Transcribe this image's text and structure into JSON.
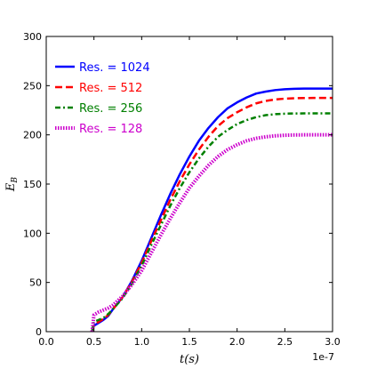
{
  "chart_data": {
    "type": "line",
    "title": "",
    "xlabel": "t(s)",
    "ylabel": "E_B",
    "x_offset_text": "1e-7",
    "xlim": [
      0,
      3.0
    ],
    "ylim": [
      0,
      300
    ],
    "x_ticks": [
      "0.0",
      "0.5",
      "1.0",
      "1.5",
      "2.0",
      "2.5",
      "3.0"
    ],
    "y_ticks": [
      "0",
      "50",
      "100",
      "150",
      "200",
      "250",
      "300"
    ],
    "grid": false,
    "legend_position": "top-left",
    "series": [
      {
        "name": "Res. = 1024",
        "color": "#0000ff",
        "style": "solid",
        "points": [
          [
            0.48,
            0
          ],
          [
            0.5,
            6
          ],
          [
            0.55,
            9
          ],
          [
            0.6,
            12
          ],
          [
            0.65,
            16
          ],
          [
            0.7,
            23
          ],
          [
            0.8,
            35
          ],
          [
            0.9,
            52
          ],
          [
            1.0,
            72
          ],
          [
            1.1,
            95
          ],
          [
            1.2,
            118
          ],
          [
            1.3,
            140
          ],
          [
            1.4,
            160
          ],
          [
            1.5,
            178
          ],
          [
            1.6,
            194
          ],
          [
            1.7,
            207
          ],
          [
            1.8,
            218
          ],
          [
            1.9,
            227
          ],
          [
            2.0,
            233
          ],
          [
            2.1,
            238
          ],
          [
            2.2,
            242
          ],
          [
            2.3,
            244
          ],
          [
            2.4,
            245.5
          ],
          [
            2.5,
            246.3
          ],
          [
            2.6,
            246.8
          ],
          [
            2.7,
            247
          ],
          [
            2.8,
            247
          ],
          [
            2.9,
            247
          ],
          [
            3.0,
            247
          ]
        ]
      },
      {
        "name": "Res. = 512",
        "color": "#ff0000",
        "style": "dashed",
        "points": [
          [
            0.48,
            0
          ],
          [
            0.5,
            7
          ],
          [
            0.55,
            10
          ],
          [
            0.6,
            13
          ],
          [
            0.65,
            17
          ],
          [
            0.7,
            23
          ],
          [
            0.8,
            35
          ],
          [
            0.9,
            51
          ],
          [
            1.0,
            70
          ],
          [
            1.1,
            92
          ],
          [
            1.2,
            113
          ],
          [
            1.3,
            134
          ],
          [
            1.4,
            153
          ],
          [
            1.5,
            170
          ],
          [
            1.6,
            185
          ],
          [
            1.7,
            198
          ],
          [
            1.8,
            209
          ],
          [
            1.9,
            217
          ],
          [
            2.0,
            223
          ],
          [
            2.1,
            228
          ],
          [
            2.2,
            232
          ],
          [
            2.3,
            234.5
          ],
          [
            2.4,
            236
          ],
          [
            2.5,
            236.8
          ],
          [
            2.6,
            237.2
          ],
          [
            2.7,
            237.4
          ],
          [
            2.8,
            237.5
          ],
          [
            2.9,
            237.5
          ],
          [
            3.0,
            237.5
          ]
        ]
      },
      {
        "name": "Res. = 256",
        "color": "#008000",
        "style": "dashdot",
        "points": [
          [
            0.48,
            0
          ],
          [
            0.5,
            10
          ],
          [
            0.55,
            12
          ],
          [
            0.6,
            14
          ],
          [
            0.65,
            18
          ],
          [
            0.7,
            23
          ],
          [
            0.8,
            34
          ],
          [
            0.9,
            49
          ],
          [
            1.0,
            67
          ],
          [
            1.1,
            88
          ],
          [
            1.2,
            108
          ],
          [
            1.3,
            128
          ],
          [
            1.4,
            146
          ],
          [
            1.5,
            162
          ],
          [
            1.6,
            176
          ],
          [
            1.7,
            188
          ],
          [
            1.8,
            198
          ],
          [
            1.9,
            205
          ],
          [
            2.0,
            211
          ],
          [
            2.1,
            215
          ],
          [
            2.2,
            218
          ],
          [
            2.3,
            220
          ],
          [
            2.4,
            221
          ],
          [
            2.5,
            221.5
          ],
          [
            2.6,
            221.7
          ],
          [
            2.7,
            221.8
          ],
          [
            2.8,
            221.8
          ],
          [
            2.9,
            221.8
          ],
          [
            3.0,
            221.8
          ]
        ]
      },
      {
        "name": "Res. = 128",
        "color": "#cc00cc",
        "style": "dotted",
        "points": [
          [
            0.48,
            0
          ],
          [
            0.5,
            17
          ],
          [
            0.55,
            20
          ],
          [
            0.6,
            22
          ],
          [
            0.65,
            24
          ],
          [
            0.7,
            27
          ],
          [
            0.8,
            36
          ],
          [
            0.9,
            48
          ],
          [
            1.0,
            62
          ],
          [
            1.1,
            80
          ],
          [
            1.2,
            98
          ],
          [
            1.3,
            115
          ],
          [
            1.4,
            131
          ],
          [
            1.5,
            146
          ],
          [
            1.6,
            158
          ],
          [
            1.7,
            169
          ],
          [
            1.8,
            178
          ],
          [
            1.9,
            185
          ],
          [
            2.0,
            190
          ],
          [
            2.1,
            194
          ],
          [
            2.2,
            196.5
          ],
          [
            2.3,
            198
          ],
          [
            2.4,
            199
          ],
          [
            2.5,
            199.6
          ],
          [
            2.6,
            199.9
          ],
          [
            2.7,
            200
          ],
          [
            2.8,
            200
          ],
          [
            2.9,
            200
          ],
          [
            3.0,
            200
          ]
        ]
      }
    ]
  }
}
